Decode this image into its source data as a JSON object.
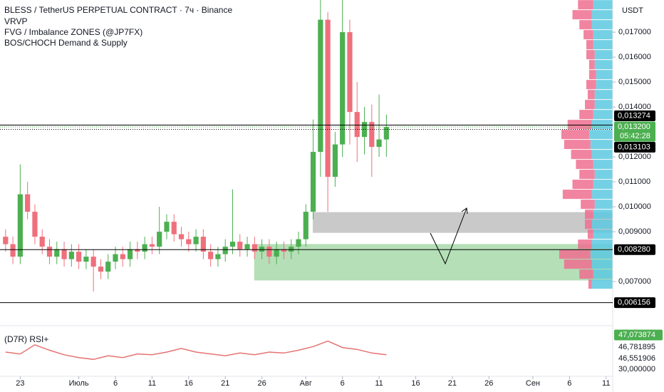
{
  "chart_data": [
    {
      "type": "candlestick",
      "title": "BLESS / TetherUS PERPETUAL CONTRACT · 7ч · Binance",
      "indicators": [
        "VRVP",
        "FVG / Imbalance ZONES (@JP7FX)",
        "BOS/CHOCH Demand & Supply"
      ],
      "currency": "USDT",
      "x": [
        -2,
        -1,
        0,
        1,
        2,
        3,
        4,
        5,
        6,
        7,
        8,
        9,
        10,
        11,
        12,
        13,
        14,
        15,
        16,
        17,
        18,
        19,
        20,
        21,
        22,
        23,
        24,
        25,
        26,
        27,
        28,
        29,
        30,
        31,
        32,
        33,
        34,
        35,
        36,
        37,
        38,
        39,
        40,
        41,
        42,
        43,
        44,
        45,
        46,
        47,
        48,
        49,
        50
      ],
      "open": [
        0.0088,
        0.0085,
        0.008,
        0.0105,
        0.0098,
        0.0088,
        0.0084,
        0.008,
        0.0083,
        0.0079,
        0.0082,
        0.0078,
        0.008,
        0.0076,
        0.0074,
        0.0078,
        0.0081,
        0.0079,
        0.0083,
        0.0082,
        0.0085,
        0.0084,
        0.009,
        0.0094,
        0.0089,
        0.0087,
        0.0085,
        0.0088,
        0.0082,
        0.0079,
        0.0081,
        0.0084,
        0.0086,
        0.0083,
        0.0085,
        0.0082,
        0.0084,
        0.008,
        0.0083,
        0.0082,
        0.0084,
        0.0087,
        0.0098,
        0.0122,
        0.0175,
        0.0112,
        0.0125,
        0.017,
        0.0138,
        0.0128,
        0.0134,
        0.0124,
        0.0127
      ],
      "high": [
        0.0091,
        0.0088,
        0.0117,
        0.011,
        0.0101,
        0.0091,
        0.0087,
        0.0086,
        0.0086,
        0.0085,
        0.0085,
        0.0083,
        0.0083,
        0.0079,
        0.0081,
        0.0084,
        0.0084,
        0.0086,
        0.0086,
        0.0088,
        0.0088,
        0.01,
        0.0097,
        0.0097,
        0.0092,
        0.009,
        0.0091,
        0.0091,
        0.0085,
        0.0084,
        0.0087,
        0.0107,
        0.0089,
        0.0088,
        0.0088,
        0.0087,
        0.0087,
        0.0086,
        0.0086,
        0.0087,
        0.009,
        0.0101,
        0.0135,
        0.0185,
        0.0178,
        0.013,
        0.0185,
        0.0175,
        0.015,
        0.014,
        0.0141,
        0.0145,
        0.0137
      ],
      "low": [
        0.0082,
        0.0077,
        0.0077,
        0.0095,
        0.0085,
        0.0081,
        0.0077,
        0.0077,
        0.0076,
        0.0076,
        0.0075,
        0.0075,
        0.0066,
        0.0071,
        0.0071,
        0.0075,
        0.0076,
        0.0076,
        0.0079,
        0.0079,
        0.0081,
        0.0081,
        0.0087,
        0.0086,
        0.0084,
        0.0082,
        0.0082,
        0.0079,
        0.0076,
        0.0076,
        0.0078,
        0.0081,
        0.008,
        0.008,
        0.0079,
        0.0079,
        0.0077,
        0.0077,
        0.0079,
        0.0079,
        0.0081,
        0.0084,
        0.0095,
        0.0112,
        0.0098,
        0.0108,
        0.012,
        0.0125,
        0.0118,
        0.0121,
        0.0112,
        0.012,
        0.012
      ],
      "close": [
        0.0085,
        0.008,
        0.0105,
        0.0098,
        0.0088,
        0.0084,
        0.008,
        0.0083,
        0.0079,
        0.0082,
        0.0078,
        0.008,
        0.0076,
        0.0074,
        0.0078,
        0.0081,
        0.0079,
        0.0083,
        0.0082,
        0.0085,
        0.0084,
        0.009,
        0.0094,
        0.0089,
        0.0087,
        0.0085,
        0.0088,
        0.0082,
        0.0079,
        0.0081,
        0.0084,
        0.0086,
        0.0083,
        0.0085,
        0.0082,
        0.0084,
        0.008,
        0.0083,
        0.0082,
        0.0084,
        0.0087,
        0.0098,
        0.0122,
        0.0175,
        0.0112,
        0.0125,
        0.017,
        0.0138,
        0.0128,
        0.0134,
        0.0124,
        0.0127,
        0.0132
      ],
      "up_color": "#4caf50",
      "down_color": "#ef6f7c",
      "xlim": [
        -2.76,
        80.9
      ],
      "xticks": [
        {
          "value": 0,
          "label": "23"
        },
        {
          "value": 8,
          "label": "Июль"
        },
        {
          "value": 13,
          "label": "6"
        },
        {
          "value": 18,
          "label": "11"
        },
        {
          "value": 23,
          "label": "16"
        },
        {
          "value": 28,
          "label": "21"
        },
        {
          "value": 33,
          "label": "26"
        },
        {
          "value": 39,
          "label": "Авг"
        },
        {
          "value": 44,
          "label": "6"
        },
        {
          "value": 49,
          "label": "11"
        },
        {
          "value": 54,
          "label": "16"
        },
        {
          "value": 59,
          "label": "21"
        },
        {
          "value": 64,
          "label": "26"
        },
        {
          "value": 70,
          "label": "Сен"
        },
        {
          "value": 75,
          "label": "6"
        },
        {
          "value": 80,
          "label": "11"
        }
      ],
      "ylim": [
        0.00526,
        0.01829
      ],
      "yticks": [
        {
          "value": 0.007,
          "label": "0,007000"
        },
        {
          "value": 0.009,
          "label": "0,009000"
        },
        {
          "value": 0.01,
          "label": "0,010000"
        },
        {
          "value": 0.011,
          "label": "0,011000"
        },
        {
          "value": 0.012,
          "label": "0,012000"
        },
        {
          "value": 0.014,
          "label": "0,014000"
        },
        {
          "value": 0.015,
          "label": "0,015000"
        },
        {
          "value": 0.016,
          "label": "0,016000"
        },
        {
          "value": 0.017,
          "label": "0,017000"
        }
      ],
      "zones": [
        {
          "x0": 40.0,
          "ylim": [
            0.00897,
            0.00977
          ],
          "color": "#c9c9c9"
        },
        {
          "x0": 32.0,
          "ylim": [
            0.00706,
            0.00849
          ],
          "color": "#b5dfb7"
        }
      ],
      "price_labels": [
        {
          "value": 0.013274,
          "label": "0,013274",
          "color": "#000000",
          "line": true
        },
        {
          "value": 0.0132,
          "label": "0,013200",
          "color": "#4caf50",
          "countdown": "05:42:28"
        },
        {
          "value": 0.013103,
          "label": "0,013103",
          "color": "#000000"
        },
        {
          "value": 0.00828,
          "label": "0,008280",
          "color": "#000000",
          "line": true
        },
        {
          "value": 0.006156,
          "label": "0,006156",
          "color": "#000000",
          "line": true
        }
      ],
      "volume_profile": {
        "price": [
          0.0069,
          0.0073,
          0.0077,
          0.0081,
          0.0085,
          0.0089,
          0.0093,
          0.0097,
          0.0101,
          0.0105,
          0.0109,
          0.0113,
          0.0117,
          0.0121,
          0.0125,
          0.0129,
          0.0133,
          0.0137,
          0.0141,
          0.0145,
          0.0149,
          0.0153,
          0.0157,
          0.0161,
          0.0165,
          0.0169,
          0.0173,
          0.0177,
          0.0181
        ],
        "up": [
          30,
          28,
          30,
          32,
          30,
          28,
          30,
          28,
          26,
          30,
          28,
          26,
          28,
          30,
          32,
          34,
          30,
          28,
          26,
          26,
          24,
          24,
          26,
          26,
          28,
          28,
          30,
          30,
          28
        ],
        "down": [
          5,
          20,
          40,
          45,
          20,
          8,
          10,
          12,
          20,
          42,
          30,
          22,
          25,
          30,
          38,
          40,
          35,
          20,
          14,
          10,
          14,
          10,
          8,
          12,
          10,
          14,
          18,
          28,
          22
        ],
        "up_color": "#5cc9e0",
        "down_color": "#ee6f8f"
      }
    },
    {
      "type": "line",
      "title": "(D7R) RSI+",
      "x": [
        -2,
        0,
        2,
        4,
        6,
        8,
        10,
        12,
        14,
        16,
        18,
        20,
        22,
        24,
        26,
        28,
        30,
        32,
        34,
        36,
        38,
        40,
        42,
        44,
        46,
        48,
        50
      ],
      "values": [
        50,
        48,
        58,
        52,
        47,
        44,
        42,
        46,
        44,
        48,
        47,
        50,
        54,
        50,
        48,
        46,
        49,
        47,
        50,
        49,
        52,
        56,
        62,
        55,
        53,
        49,
        47.073874
      ],
      "color": "#e57373",
      "ylim": [
        25,
        75
      ],
      "labels": [
        {
          "value": 47.073874,
          "label": "47,073874",
          "color": "#4caf50"
        },
        {
          "value": 46.781895,
          "label": "46,781895"
        },
        {
          "value": 46.551906,
          "label": "46,551906"
        },
        {
          "value": 30,
          "label": "30,000000"
        }
      ]
    }
  ]
}
